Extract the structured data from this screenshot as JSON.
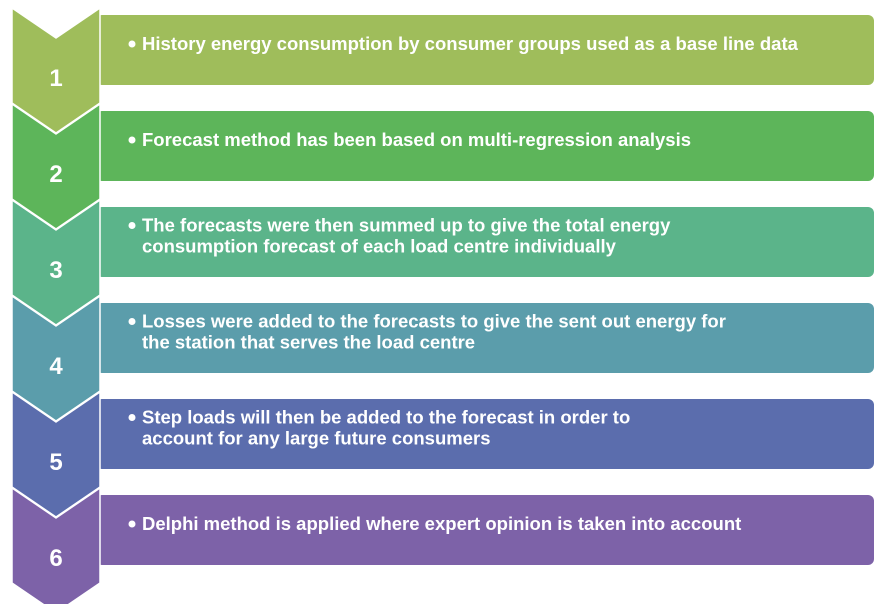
{
  "steps": [
    {
      "number": "1",
      "lines": [
        "History energy consumption by consumer groups used as a base line data"
      ]
    },
    {
      "number": "2",
      "lines": [
        "Forecast method has been based on multi-regression analysis"
      ]
    },
    {
      "number": "3",
      "lines": [
        "The forecasts were then summed up to give the total energy",
        "consumption forecast of each load centre individually"
      ]
    },
    {
      "number": "4",
      "lines": [
        "Losses were added to the forecasts to give the sent out energy for",
        "the station that serves the load centre"
      ]
    },
    {
      "number": "5",
      "lines": [
        "Step loads will then be added to the forecast in order to",
        "account for any large future consumers"
      ]
    },
    {
      "number": "6",
      "lines": [
        "Delphi method is applied where expert opinion is taken into account"
      ]
    }
  ]
}
